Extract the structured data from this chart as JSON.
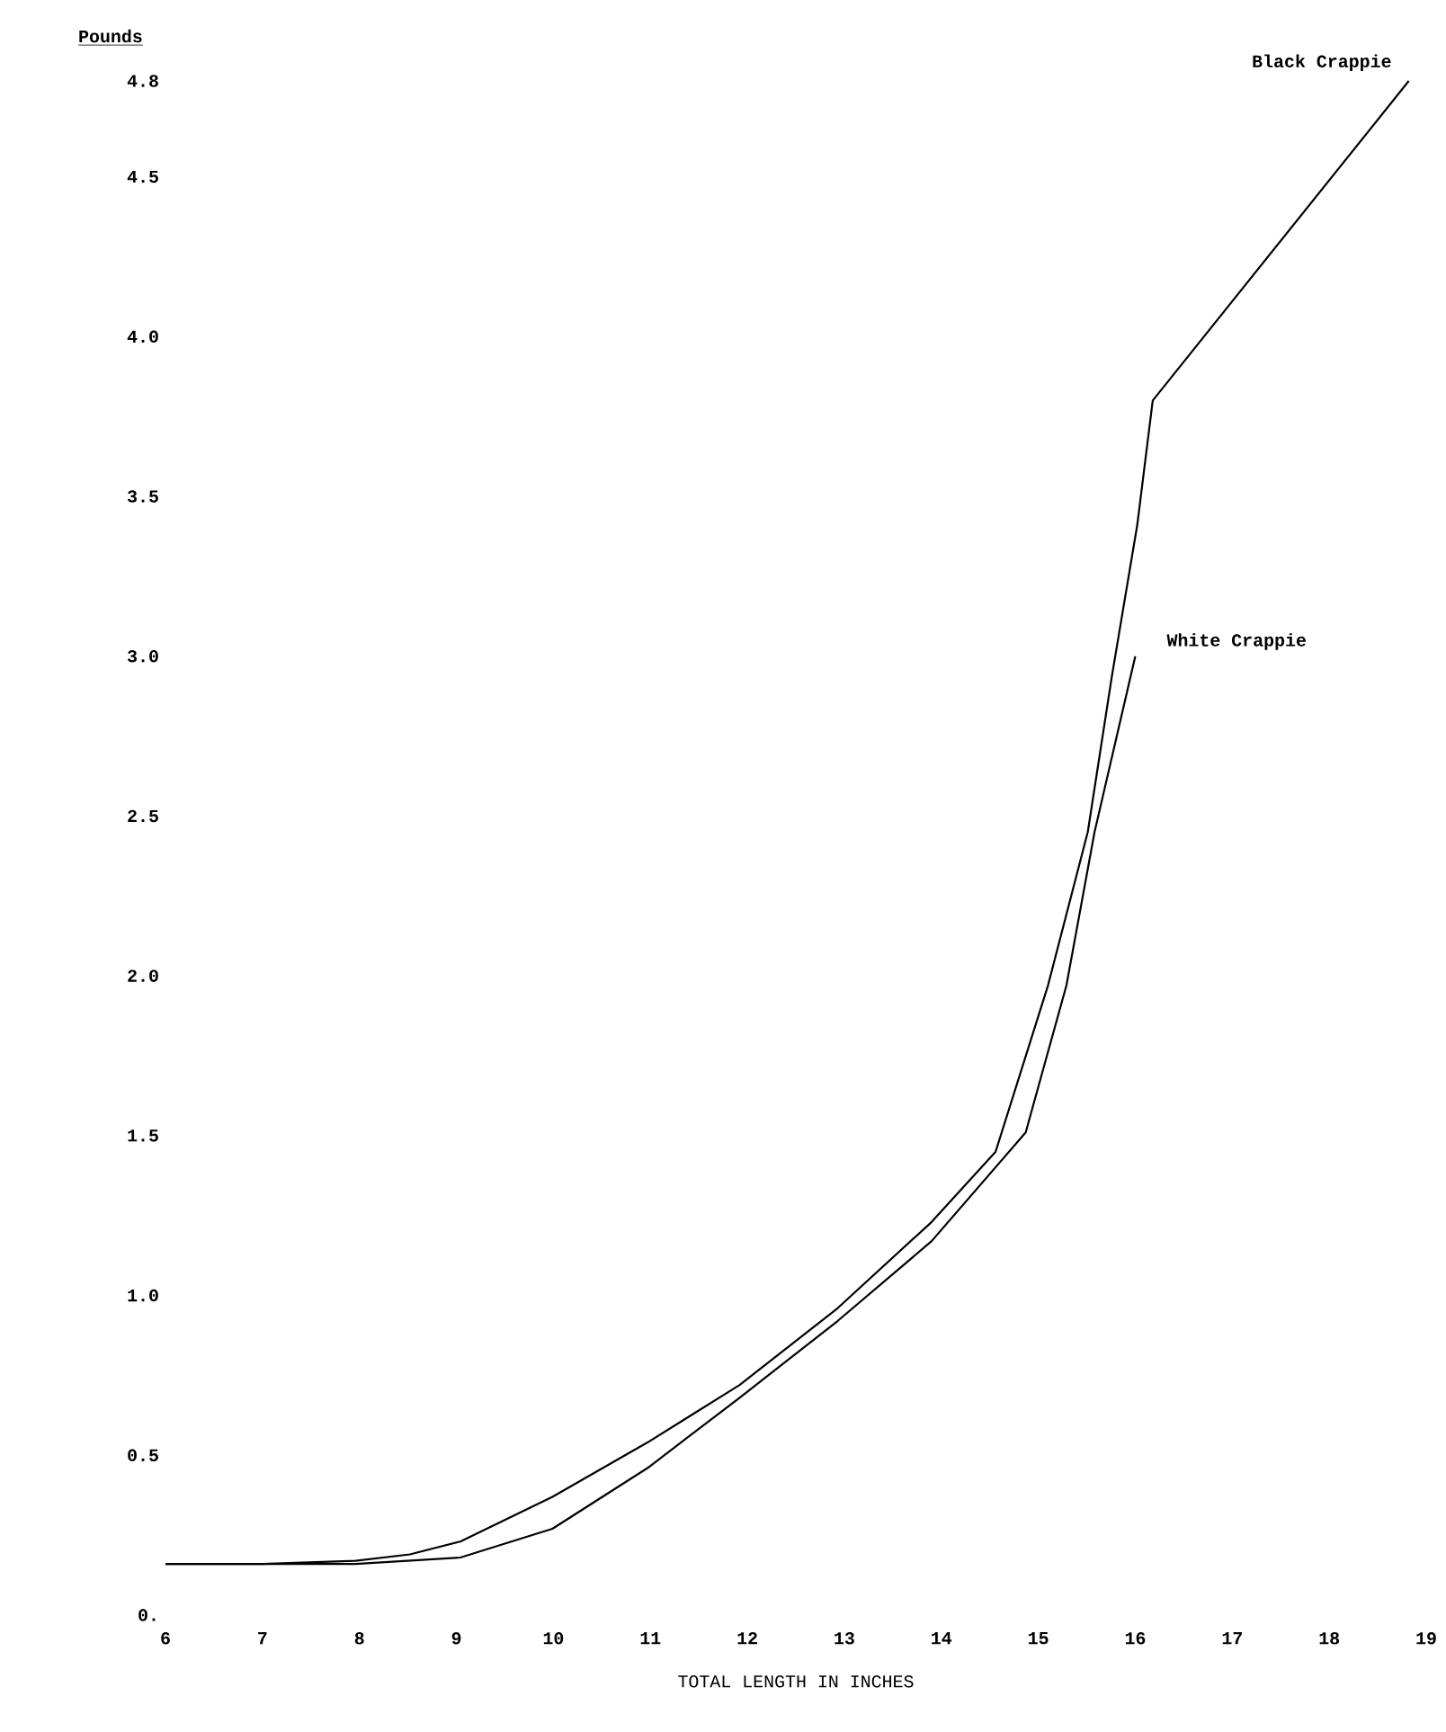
{
  "chart_data": {
    "type": "line",
    "xlabel": "TOTAL LENGTH IN INCHES",
    "ylabel": "Pounds",
    "xlim": [
      6,
      19
    ],
    "xticks": [
      6,
      7,
      8,
      9,
      10,
      11,
      12,
      13,
      14,
      15,
      16,
      17,
      18,
      19
    ],
    "ylim": [
      0,
      4.8
    ],
    "yticks": [
      {
        "value": 0,
        "label": "0."
      },
      {
        "value": 0.5,
        "label": "0.5"
      },
      {
        "value": 1,
        "label": "1.0"
      },
      {
        "value": 1.5,
        "label": "1.5"
      },
      {
        "value": 2,
        "label": "2.0"
      },
      {
        "value": 2.5,
        "label": "2.5"
      },
      {
        "value": 3,
        "label": "3.0"
      },
      {
        "value": 3.5,
        "label": "3.5"
      },
      {
        "value": 4,
        "label": "4.0"
      },
      {
        "value": 4.5,
        "label": "4.5"
      },
      {
        "value": 4.8,
        "label": "4.8"
      }
    ],
    "grid": false,
    "legend": false,
    "marker": "none",
    "line_style": "solid",
    "series": [
      {
        "name": "Black Crappie",
        "color": "#000000",
        "x": [
          6.0,
          7.0,
          7.96,
          8.52,
          9.04,
          9.99,
          10.97,
          11.92,
          12.93,
          13.9,
          14.56,
          15.1,
          15.51,
          15.76,
          16.02,
          16.18,
          18.82
        ],
        "values": [
          0.16,
          0.16,
          0.17,
          0.19,
          0.23,
          0.37,
          0.54,
          0.72,
          0.96,
          1.23,
          1.45,
          1.97,
          2.45,
          2.94,
          3.41,
          3.8,
          4.8
        ]
      },
      {
        "name": "White Crappie",
        "color": "#000000",
        "x": [
          6.0,
          7.96,
          9.04,
          9.99,
          10.97,
          11.92,
          12.93,
          13.9,
          14.87,
          15.29,
          15.58,
          16.0
        ],
        "values": [
          0.16,
          0.16,
          0.18,
          0.27,
          0.46,
          0.68,
          0.92,
          1.17,
          1.51,
          1.97,
          2.45,
          3.0
        ]
      }
    ]
  }
}
